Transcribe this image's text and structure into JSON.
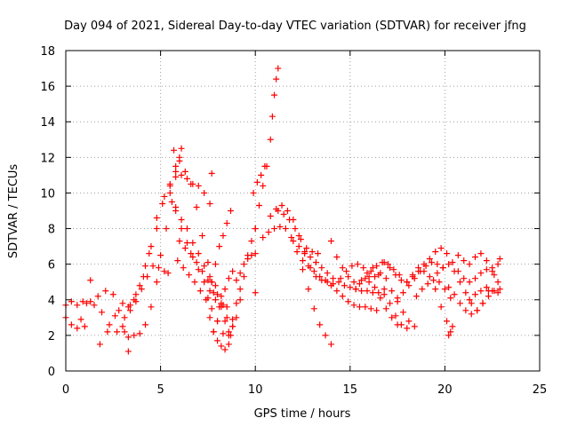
{
  "chart_data": {
    "type": "scatter",
    "title": "Day 094 of 2021, Sidereal Day-to-day VTEC variation (SDTVAR) for receiver jfng",
    "xlabel": "GPS time / hours",
    "ylabel": "SDTVAR / TECUs",
    "xlim": [
      0,
      25
    ],
    "ylim": [
      0,
      18
    ],
    "xticks": [
      0,
      5,
      10,
      15,
      20,
      25
    ],
    "yticks": [
      0,
      2,
      4,
      6,
      8,
      10,
      12,
      14,
      16,
      18
    ],
    "grid": true,
    "marker": "+",
    "color": "#ff0000",
    "series": [
      {
        "name": "s1",
        "x": [
          0.0,
          0.3,
          0.6,
          0.9,
          1.1,
          1.3
        ],
        "y": [
          3.7,
          3.9,
          3.7,
          3.9,
          3.8,
          3.9
        ]
      },
      {
        "name": "s2",
        "x": [
          0.0,
          0.3,
          0.6,
          0.8,
          1.0
        ],
        "y": [
          3.0,
          2.6,
          2.4,
          2.9,
          2.5
        ]
      },
      {
        "name": "s3",
        "x": [
          1.3,
          1.7,
          2.1,
          2.5,
          2.8,
          3.1,
          3.3
        ],
        "y": [
          5.1,
          4.2,
          4.5,
          4.3,
          3.4,
          2.2,
          1.1
        ]
      },
      {
        "name": "s4",
        "x": [
          1.8,
          2.2,
          2.6,
          3.0,
          3.3,
          3.6,
          3.9,
          4.2,
          4.5,
          4.8,
          5.2,
          5.5,
          5.8,
          6.0,
          6.1
        ],
        "y": [
          1.5,
          2.2,
          3.1,
          3.8,
          3.6,
          4.0,
          4.8,
          5.9,
          7.0,
          8.6,
          9.8,
          10.5,
          11.2,
          12.0,
          12.5
        ]
      },
      {
        "name": "s5",
        "x": [
          1.5,
          1.9,
          2.3,
          2.7,
          3.1,
          3.4,
          3.7,
          4.1,
          4.4,
          4.8,
          5.1,
          5.5,
          5.8
        ],
        "y": [
          3.7,
          3.3,
          2.6,
          2.2,
          3.0,
          3.7,
          4.3,
          5.3,
          6.6,
          8.0,
          9.4,
          10.4,
          10.9
        ]
      },
      {
        "name": "s6",
        "x": [
          3.0,
          3.3,
          3.6,
          3.9,
          4.2,
          4.5,
          4.8,
          5.0,
          5.3,
          5.6
        ],
        "y": [
          2.5,
          1.9,
          2.0,
          2.1,
          2.6,
          3.6,
          5.0,
          6.5,
          8.0,
          9.5
        ]
      },
      {
        "name": "s7",
        "x": [
          3.4,
          3.7,
          4.0,
          4.3,
          4.6,
          4.9,
          5.2,
          5.4
        ],
        "y": [
          3.4,
          3.9,
          4.6,
          5.3,
          5.9,
          5.8,
          5.6,
          5.5
        ]
      },
      {
        "name": "s8",
        "x": [
          5.7,
          6.0,
          6.3,
          6.6,
          6.9,
          7.2,
          7.5,
          7.7,
          8.0,
          8.3,
          8.5,
          8.8
        ],
        "y": [
          12.4,
          11.8,
          11.2,
          10.5,
          9.2,
          7.6,
          6.1,
          5.0,
          4.3,
          3.7,
          3.0,
          2.5
        ]
      },
      {
        "name": "s9",
        "x": [
          5.8,
          6.1,
          6.4,
          6.7,
          7.0,
          7.3,
          7.6
        ],
        "y": [
          11.5,
          11.0,
          10.8,
          10.5,
          10.4,
          10.0,
          9.4
        ]
      },
      {
        "name": "s10",
        "x": [
          5.5,
          5.8,
          6.1,
          6.4,
          6.7,
          7.0,
          7.3,
          7.6,
          7.9,
          8.2,
          8.5
        ],
        "y": [
          10.0,
          9.2,
          8.5,
          8.0,
          7.2,
          6.6,
          5.9,
          5.3,
          4.8,
          4.2,
          3.6
        ]
      },
      {
        "name": "s11",
        "x": [
          5.8,
          6.1,
          6.4,
          6.7,
          7.0,
          7.3,
          7.6,
          7.9,
          8.2
        ],
        "y": [
          9.0,
          8.0,
          7.2,
          6.4,
          5.7,
          5.0,
          4.5,
          4.0,
          3.6
        ]
      },
      {
        "name": "s12",
        "x": [
          6.0,
          6.3,
          6.6,
          6.9,
          7.2,
          7.5,
          7.8,
          8.1,
          8.4,
          8.7
        ],
        "y": [
          7.3,
          6.9,
          6.6,
          6.1,
          5.6,
          5.1,
          4.4,
          3.6,
          2.8,
          2.0
        ]
      },
      {
        "name": "s13",
        "x": [
          5.9,
          6.2,
          6.5,
          6.8,
          7.1,
          7.4,
          7.7,
          8.0,
          8.3,
          8.6
        ],
        "y": [
          6.2,
          5.8,
          5.4,
          5.0,
          4.5,
          4.0,
          3.5,
          2.8,
          2.1,
          1.5
        ]
      },
      {
        "name": "s14",
        "x": [
          7.7
        ],
        "y": [
          11.1
        ]
      },
      {
        "name": "s15",
        "x": [
          7.5,
          7.7,
          7.9,
          8.1,
          8.3,
          8.5,
          8.7
        ],
        "y": [
          4.1,
          5.0,
          6.0,
          7.0,
          7.6,
          8.3,
          9.0
        ]
      },
      {
        "name": "s16",
        "x": [
          7.6,
          7.8,
          8.0,
          8.2,
          8.4,
          8.6,
          8.8
        ],
        "y": [
          3.0,
          2.2,
          2.8,
          3.8,
          4.6,
          5.2,
          5.6
        ]
      },
      {
        "name": "s17",
        "x": [
          7.8,
          8.0,
          8.2,
          8.4,
          8.6,
          8.8,
          9.0,
          9.2
        ],
        "y": [
          2.2,
          1.7,
          1.4,
          1.2,
          2.0,
          2.9,
          3.8,
          4.6
        ]
      },
      {
        "name": "s18",
        "x": [
          8.6,
          8.8,
          9.0,
          9.2,
          9.4,
          9.6,
          9.8,
          10.0
        ],
        "y": [
          2.2,
          2.5,
          3.0,
          4.0,
          5.3,
          6.5,
          7.3,
          8.0
        ]
      },
      {
        "name": "s19",
        "x": [
          9.0,
          9.2,
          9.4,
          9.6,
          9.8,
          10.0
        ],
        "y": [
          5.1,
          5.5,
          6.0,
          6.3,
          6.5,
          6.6
        ]
      },
      {
        "name": "s20",
        "x": [
          10.0,
          10.2,
          10.4,
          10.6,
          10.8,
          10.9,
          11.0,
          11.1,
          11.2
        ],
        "y": [
          8.0,
          9.3,
          10.4,
          11.5,
          13.0,
          14.3,
          15.5,
          16.4,
          17.0
        ]
      },
      {
        "name": "s21",
        "x": [
          9.9,
          10.1,
          10.3,
          10.5
        ],
        "y": [
          10.0,
          10.6,
          11.0,
          11.5
        ]
      },
      {
        "name": "s22",
        "x": [
          10.0
        ],
        "y": [
          4.4
        ]
      },
      {
        "name": "s23",
        "x": [
          10.4,
          10.7,
          11.0,
          11.3,
          11.6,
          11.9,
          12.2,
          12.5,
          12.8,
          13.1,
          13.4,
          13.7,
          14.0
        ],
        "y": [
          7.5,
          7.8,
          8.0,
          8.1,
          8.0,
          7.5,
          6.7,
          5.7,
          4.6,
          3.5,
          2.6,
          2.0,
          1.5
        ]
      },
      {
        "name": "s24",
        "x": [
          10.8,
          11.1,
          11.4,
          11.7,
          12.0,
          12.3,
          12.6,
          12.9,
          13.2,
          13.5,
          13.8,
          14.1
        ],
        "y": [
          8.7,
          9.1,
          9.3,
          9.0,
          8.5,
          7.6,
          6.6,
          5.8,
          5.3,
          5.1,
          5.0,
          4.9
        ]
      },
      {
        "name": "s25",
        "x": [
          11.2,
          11.5,
          11.8,
          12.1,
          12.4,
          12.7,
          13.0,
          13.3
        ],
        "y": [
          9.0,
          8.8,
          8.5,
          8.0,
          7.4,
          6.9,
          6.7,
          6.6
        ]
      },
      {
        "name": "s26",
        "x": [
          12.0,
          12.3,
          12.6,
          12.9,
          13.2,
          13.5,
          13.8,
          14.1,
          14.4,
          14.7,
          15.0,
          15.3,
          15.6,
          15.9,
          16.2,
          16.5,
          16.8
        ],
        "y": [
          7.3,
          7.0,
          6.7,
          6.4,
          6.1,
          5.8,
          5.5,
          5.2,
          5.0,
          4.8,
          4.7,
          4.6,
          4.5,
          4.5,
          4.4,
          4.4,
          4.3
        ]
      },
      {
        "name": "s27",
        "x": [
          12.5,
          12.8,
          13.1,
          13.4,
          13.7,
          14.0,
          14.3,
          14.6,
          14.9,
          15.2,
          15.5,
          15.8,
          16.1,
          16.4
        ],
        "y": [
          6.2,
          5.9,
          5.6,
          5.3,
          5.1,
          4.8,
          4.5,
          4.2,
          3.9,
          3.7,
          3.6,
          3.6,
          3.5,
          3.4
        ]
      },
      {
        "name": "s28",
        "x": [
          14.0,
          14.3,
          14.6,
          14.9,
          15.2,
          15.5,
          15.8,
          16.1,
          16.4,
          16.7,
          17.0,
          17.3,
          17.6
        ],
        "y": [
          7.3,
          6.4,
          5.8,
          5.3,
          5.0,
          4.9,
          5.2,
          5.6,
          5.9,
          6.1,
          6.0,
          5.7,
          5.4
        ]
      },
      {
        "name": "s29",
        "x": [
          14.5,
          14.8,
          15.1,
          15.4,
          15.7,
          16.0,
          16.3,
          16.6,
          16.9,
          17.2,
          17.5
        ],
        "y": [
          5.2,
          5.6,
          5.9,
          6.0,
          5.8,
          5.3,
          4.7,
          4.1,
          3.5,
          3.0,
          2.6
        ]
      },
      {
        "name": "s30",
        "x": [
          15.3,
          15.6,
          15.9,
          16.2,
          16.5,
          16.8,
          17.1,
          17.4,
          17.7,
          18.0
        ],
        "y": [
          4.6,
          5.1,
          5.5,
          5.8,
          5.4,
          4.6,
          3.8,
          3.1,
          2.6,
          2.4
        ]
      },
      {
        "name": "s31",
        "x": [
          16.0,
          16.3,
          16.6,
          16.9,
          17.2,
          17.5,
          17.8,
          18.1,
          18.4
        ],
        "y": [
          5.0,
          5.3,
          5.5,
          5.2,
          4.5,
          3.9,
          3.3,
          2.8,
          2.5
        ]
      },
      {
        "name": "s32",
        "x": [
          16.8,
          17.1,
          17.4,
          17.7,
          18.0,
          18.3,
          18.6,
          18.9,
          19.2,
          19.5,
          19.8,
          20.1
        ],
        "y": [
          6.1,
          5.8,
          5.4,
          5.1,
          5.0,
          5.3,
          5.6,
          6.0,
          6.3,
          6.7,
          6.9,
          6.6
        ]
      },
      {
        "name": "s33",
        "x": [
          17.5,
          17.8,
          18.1,
          18.4,
          18.7,
          19.0,
          19.3,
          19.6,
          19.9
        ],
        "y": [
          4.1,
          4.4,
          4.8,
          5.2,
          5.6,
          5.9,
          6.1,
          6.0,
          5.8
        ]
      },
      {
        "name": "s34",
        "x": [
          18.0,
          18.3,
          18.6,
          18.9,
          19.2,
          19.5,
          19.8,
          20.1,
          20.4
        ],
        "y": [
          5.0,
          5.4,
          5.8,
          5.6,
          5.3,
          4.6,
          3.6,
          2.8,
          2.5
        ]
      },
      {
        "name": "s35",
        "x": [
          18.5,
          18.8,
          19.1,
          19.4,
          19.7,
          20.0,
          20.3
        ],
        "y": [
          4.2,
          4.6,
          4.9,
          5.1,
          5.0,
          4.6,
          4.1
        ]
      },
      {
        "name": "s36",
        "x": [
          19.6,
          19.9,
          20.2,
          20.5,
          20.8,
          21.1,
          21.4,
          21.7,
          22.0,
          22.3,
          22.6,
          22.9
        ],
        "y": [
          5.5,
          5.8,
          6.0,
          5.6,
          5.0,
          4.4,
          3.8,
          3.4,
          3.8,
          4.5,
          5.4,
          6.3
        ]
      },
      {
        "name": "s37",
        "x": [
          20.2,
          20.5,
          20.8,
          21.1,
          21.4,
          21.7,
          22.0,
          22.3,
          22.6,
          22.9
        ],
        "y": [
          4.7,
          4.3,
          3.8,
          3.4,
          3.2,
          3.4,
          3.8,
          4.2,
          4.5,
          4.6
        ]
      },
      {
        "name": "s38",
        "x": [
          20.4,
          20.7,
          21.0,
          21.3,
          21.6,
          21.9,
          22.2,
          22.5,
          22.8
        ],
        "y": [
          6.1,
          5.6,
          5.2,
          5.0,
          5.2,
          5.5,
          5.7,
          5.8,
          6.0
        ]
      },
      {
        "name": "s39",
        "x": [
          20.7,
          21.0,
          21.3,
          21.6,
          21.9,
          22.2,
          22.5,
          22.8
        ],
        "y": [
          6.5,
          6.2,
          6.0,
          6.4,
          6.6,
          6.2,
          5.6,
          5.0
        ]
      },
      {
        "name": "s40",
        "x": [
          21.3,
          21.6,
          21.9,
          22.2,
          22.5,
          22.8
        ],
        "y": [
          4.0,
          4.3,
          4.5,
          4.7,
          4.5,
          4.4
        ]
      },
      {
        "name": "s41",
        "x": [
          20.2,
          20.3
        ],
        "y": [
          2.0,
          2.2
        ]
      }
    ]
  }
}
